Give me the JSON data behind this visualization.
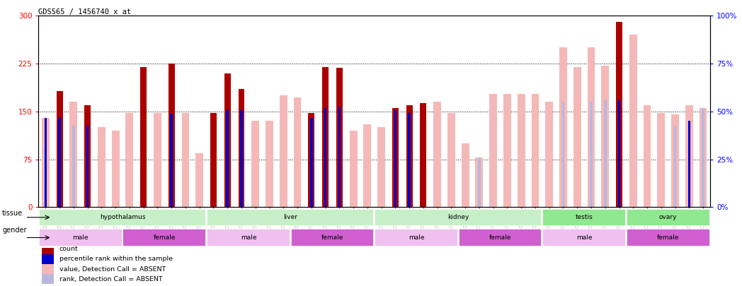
{
  "title": "GDS565 / 1456740_x_at",
  "samples": [
    "GSM19215",
    "GSM19216",
    "GSM19217",
    "GSM19218",
    "GSM19219",
    "GSM19220",
    "GSM19221",
    "GSM19222",
    "GSM19223",
    "GSM19224",
    "GSM19225",
    "GSM19226",
    "GSM19227",
    "GSM19228",
    "GSM19229",
    "GSM19230",
    "GSM19231",
    "GSM19232",
    "GSM19233",
    "GSM19234",
    "GSM19235",
    "GSM19236",
    "GSM19237",
    "GSM19238",
    "GSM19239",
    "GSM19240",
    "GSM19241",
    "GSM19242",
    "GSM19243",
    "GSM19244",
    "GSM19245",
    "GSM19246",
    "GSM19247",
    "GSM19248",
    "GSM19249",
    "GSM19250",
    "GSM19251",
    "GSM19252",
    "GSM19253",
    "GSM19254",
    "GSM19255",
    "GSM19256",
    "GSM19257",
    "GSM19258",
    "GSM19259",
    "GSM19260",
    "GSM19261",
    "GSM19262"
  ],
  "count": [
    null,
    182,
    null,
    160,
    null,
    null,
    null,
    220,
    null,
    225,
    null,
    null,
    148,
    210,
    185,
    null,
    null,
    null,
    null,
    148,
    220,
    218,
    null,
    null,
    null,
    155,
    160,
    163,
    null,
    null,
    null,
    null,
    null,
    null,
    null,
    null,
    null,
    null,
    null,
    null,
    null,
    290,
    null,
    null,
    null,
    null,
    null,
    null
  ],
  "absent_count": [
    140,
    null,
    165,
    null,
    125,
    120,
    148,
    null,
    148,
    null,
    148,
    85,
    null,
    null,
    null,
    135,
    135,
    175,
    172,
    null,
    null,
    null,
    120,
    130,
    125,
    null,
    null,
    null,
    165,
    148,
    100,
    78,
    178,
    178,
    178,
    178,
    165,
    250,
    220,
    250,
    222,
    null,
    270,
    160,
    148,
    145,
    160,
    155
  ],
  "percentile_rank": [
    140,
    140,
    null,
    128,
    null,
    null,
    null,
    null,
    null,
    147,
    null,
    null,
    null,
    152,
    152,
    null,
    null,
    null,
    null,
    140,
    155,
    158,
    null,
    null,
    null,
    152,
    148,
    null,
    null,
    null,
    null,
    null,
    null,
    null,
    null,
    null,
    null,
    null,
    null,
    null,
    null,
    167,
    null,
    null,
    null,
    null,
    135,
    null
  ],
  "absent_rank": [
    90,
    null,
    128,
    null,
    null,
    null,
    null,
    null,
    null,
    null,
    null,
    null,
    null,
    null,
    null,
    null,
    null,
    null,
    null,
    null,
    null,
    null,
    null,
    null,
    null,
    null,
    null,
    null,
    null,
    null,
    null,
    78,
    null,
    null,
    null,
    null,
    null,
    165,
    null,
    165,
    167,
    null,
    null,
    null,
    null,
    128,
    null,
    155
  ],
  "tissues": [
    {
      "label": "hypothalamus",
      "start": 0,
      "end": 12,
      "color": "#c8f0c8"
    },
    {
      "label": "liver",
      "start": 12,
      "end": 24,
      "color": "#c8f0c8"
    },
    {
      "label": "kidney",
      "start": 24,
      "end": 36,
      "color": "#c8f0c8"
    },
    {
      "label": "testis",
      "start": 36,
      "end": 42,
      "color": "#90e890"
    },
    {
      "label": "ovary",
      "start": 42,
      "end": 48,
      "color": "#90e890"
    }
  ],
  "genders": [
    {
      "label": "male",
      "start": 0,
      "end": 6,
      "color": "#f0c0f0"
    },
    {
      "label": "female",
      "start": 6,
      "end": 12,
      "color": "#d060d0"
    },
    {
      "label": "male",
      "start": 12,
      "end": 18,
      "color": "#f0c0f0"
    },
    {
      "label": "female",
      "start": 18,
      "end": 24,
      "color": "#d060d0"
    },
    {
      "label": "male",
      "start": 24,
      "end": 30,
      "color": "#f0c0f0"
    },
    {
      "label": "female",
      "start": 30,
      "end": 36,
      "color": "#d060d0"
    },
    {
      "label": "male",
      "start": 36,
      "end": 42,
      "color": "#f0c0f0"
    },
    {
      "label": "female",
      "start": 42,
      "end": 48,
      "color": "#d060d0"
    }
  ],
  "ylim_left": [
    0,
    300
  ],
  "ylim_right": [
    0,
    100
  ],
  "yticks_left": [
    0,
    75,
    150,
    225,
    300
  ],
  "yticks_right": [
    0,
    25,
    50,
    75,
    100
  ],
  "color_count": "#aa0000",
  "color_rank": "#0000cc",
  "color_absent_value": "#f5b8b8",
  "color_absent_rank": "#b8b8dd",
  "dotted_gridlines": [
    75,
    150,
    225
  ],
  "legend": [
    {
      "label": "count",
      "color": "#aa0000"
    },
    {
      "label": "percentile rank within the sample",
      "color": "#0000cc"
    },
    {
      "label": "value, Detection Call = ABSENT",
      "color": "#f5b8b8"
    },
    {
      "label": "rank, Detection Call = ABSENT",
      "color": "#b8b8dd"
    }
  ]
}
